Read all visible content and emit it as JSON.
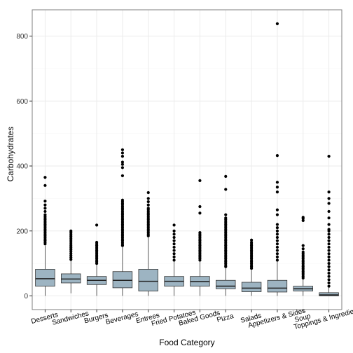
{
  "chart_data": {
    "type": "boxplot",
    "title": "",
    "xlabel": "Food Category",
    "ylabel": "Carbohydrates",
    "ylim": [
      -40,
      850
    ],
    "yticks": [
      0,
      200,
      400,
      600,
      800
    ],
    "grid": true,
    "legend": "none",
    "categories": [
      "Desserts",
      "Sandwiches",
      "Burgers",
      "Beverages",
      "Entrees",
      "Fried Potatoes",
      "Baked Goods",
      "Pizza",
      "Salads",
      "Appetizers & Sides",
      "Soup",
      "Toppings & Ingredients"
    ],
    "boxes": [
      {
        "category": "Desserts",
        "whisker_low": 0,
        "q1": 30,
        "median": 53,
        "q3": 82,
        "whisker_high": 155,
        "outliers": [
          160,
          165,
          170,
          175,
          180,
          185,
          190,
          195,
          200,
          205,
          210,
          215,
          220,
          225,
          230,
          235,
          240,
          245,
          250,
          260,
          270,
          280,
          292,
          340,
          365
        ]
      },
      {
        "category": "Sandwiches",
        "whisker_low": 8,
        "q1": 40,
        "median": 52,
        "q3": 68,
        "whisker_high": 108,
        "outliers": [
          112,
          118,
          124,
          130,
          136,
          142,
          148,
          154,
          160,
          166,
          172,
          178,
          184,
          190,
          196,
          200
        ]
      },
      {
        "category": "Burgers",
        "whisker_low": 0,
        "q1": 35,
        "median": 48,
        "q3": 60,
        "whisker_high": 95,
        "outliers": [
          100,
          105,
          110,
          115,
          120,
          125,
          130,
          135,
          140,
          145,
          150,
          155,
          160,
          165,
          218
        ]
      },
      {
        "category": "Beverages",
        "whisker_low": 0,
        "q1": 25,
        "median": 48,
        "q3": 75,
        "whisker_high": 150,
        "outliers": [
          155,
          160,
          165,
          170,
          175,
          180,
          185,
          190,
          195,
          200,
          205,
          210,
          215,
          220,
          225,
          230,
          235,
          240,
          245,
          250,
          255,
          260,
          265,
          270,
          275,
          280,
          285,
          290,
          295,
          370,
          395,
          405,
          412,
          430,
          440,
          450
        ]
      },
      {
        "category": "Entrees",
        "whisker_low": 0,
        "q1": 15,
        "median": 45,
        "q3": 82,
        "whisker_high": 180,
        "outliers": [
          185,
          190,
          195,
          200,
          205,
          210,
          215,
          220,
          225,
          230,
          235,
          240,
          245,
          250,
          255,
          260,
          265,
          270,
          280,
          290,
          300,
          318
        ]
      },
      {
        "category": "Fried Potatoes",
        "whisker_low": 0,
        "q1": 30,
        "median": 45,
        "q3": 60,
        "whisker_high": 105,
        "outliers": [
          110,
          120,
          130,
          140,
          150,
          160,
          170,
          180,
          190,
          200,
          218
        ]
      },
      {
        "category": "Baked Goods",
        "whisker_low": 0,
        "q1": 30,
        "median": 44,
        "q3": 60,
        "whisker_high": 105,
        "outliers": [
          110,
          115,
          120,
          125,
          130,
          135,
          140,
          145,
          150,
          155,
          160,
          165,
          170,
          175,
          180,
          185,
          190,
          195,
          255,
          275,
          355
        ]
      },
      {
        "category": "Pizza",
        "whisker_low": 0,
        "q1": 22,
        "median": 30,
        "q3": 48,
        "whisker_high": 85,
        "outliers": [
          90,
          95,
          100,
          105,
          110,
          115,
          120,
          125,
          130,
          135,
          140,
          145,
          150,
          155,
          160,
          165,
          170,
          175,
          180,
          185,
          190,
          195,
          200,
          205,
          210,
          215,
          220,
          225,
          230,
          235,
          240,
          250,
          328,
          368
        ]
      },
      {
        "category": "Salads",
        "whisker_low": 0,
        "q1": 13,
        "median": 24,
        "q3": 42,
        "whisker_high": 80,
        "outliers": [
          85,
          90,
          95,
          100,
          105,
          110,
          115,
          120,
          125,
          130,
          135,
          140,
          145,
          150,
          155,
          160,
          165,
          172
        ]
      },
      {
        "category": "Appetizers & Sides",
        "whisker_low": 0,
        "q1": 12,
        "median": 24,
        "q3": 48,
        "whisker_high": 105,
        "outliers": [
          110,
          120,
          130,
          140,
          150,
          160,
          170,
          180,
          190,
          200,
          210,
          220,
          250,
          265,
          320,
          335,
          350,
          432,
          838
        ]
      },
      {
        "category": "Soup",
        "whisker_low": 0,
        "q1": 15,
        "median": 22,
        "q3": 30,
        "whisker_high": 50,
        "outliers": [
          55,
          60,
          65,
          70,
          75,
          80,
          85,
          90,
          95,
          100,
          105,
          110,
          115,
          120,
          125,
          130,
          135,
          145,
          155,
          232,
          238,
          242
        ]
      },
      {
        "category": "Toppings & Ingredients",
        "whisker_low": 0,
        "q1": 0,
        "median": 3,
        "q3": 10,
        "whisker_high": 25,
        "outliers": [
          30,
          40,
          50,
          60,
          70,
          80,
          90,
          100,
          110,
          120,
          130,
          140,
          150,
          160,
          170,
          180,
          190,
          200,
          205,
          220,
          240,
          260,
          285,
          300,
          320,
          430
        ]
      }
    ],
    "colors": {
      "box_fill": "#9db4c2",
      "box_stroke": "#333333",
      "median": "#222222",
      "outlier": "#000000",
      "panel_border": "#7f7f7f",
      "grid_major": "#ebebeb",
      "grid_minor": "#f5f5f5",
      "text": "#000000"
    }
  }
}
